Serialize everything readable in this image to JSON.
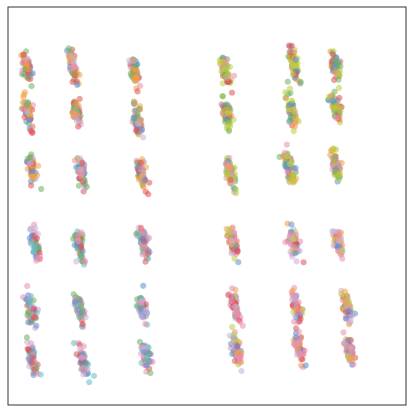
{
  "chart_data": {
    "type": "scatter",
    "title": "",
    "xlabel": "",
    "ylabel": "",
    "grid": false,
    "legend": "none",
    "xlim": [
      0,
      1
    ],
    "ylim": [
      0,
      1
    ],
    "colors": [
      "#f0a040",
      "#e05050",
      "#5b8fd0",
      "#6cb060",
      "#e890b0",
      "#c8b0d8",
      "#b8d040",
      "#60c0c0"
    ],
    "cluster_palettes": {
      "orange-mix": [
        0,
        0,
        1,
        4,
        2,
        5,
        3
      ],
      "green-mix": [
        6,
        6,
        3,
        1,
        2,
        0,
        4
      ],
      "teal-pink-mix": [
        7,
        4,
        4,
        1,
        2,
        5,
        3
      ],
      "pink-mix": [
        4,
        4,
        5,
        1,
        6,
        0,
        2
      ]
    },
    "clusters": [
      {
        "x": 0.048,
        "y": 0.85,
        "palette": "orange-mix"
      },
      {
        "x": 0.163,
        "y": 0.852,
        "palette": "orange-mix"
      },
      {
        "x": 0.318,
        "y": 0.84,
        "palette": "orange-mix"
      },
      {
        "x": 0.545,
        "y": 0.84,
        "palette": "green-mix"
      },
      {
        "x": 0.718,
        "y": 0.858,
        "palette": "green-mix"
      },
      {
        "x": 0.822,
        "y": 0.857,
        "palette": "green-mix"
      },
      {
        "x": 0.05,
        "y": 0.735,
        "palette": "orange-mix"
      },
      {
        "x": 0.172,
        "y": 0.735,
        "palette": "orange-mix"
      },
      {
        "x": 0.325,
        "y": 0.722,
        "palette": "orange-mix"
      },
      {
        "x": 0.55,
        "y": 0.728,
        "palette": "green-mix"
      },
      {
        "x": 0.712,
        "y": 0.742,
        "palette": "green-mix"
      },
      {
        "x": 0.825,
        "y": 0.745,
        "palette": "green-mix"
      },
      {
        "x": 0.06,
        "y": 0.59,
        "palette": "orange-mix"
      },
      {
        "x": 0.183,
        "y": 0.587,
        "palette": "orange-mix"
      },
      {
        "x": 0.335,
        "y": 0.585,
        "palette": "orange-mix"
      },
      {
        "x": 0.558,
        "y": 0.588,
        "palette": "green-mix"
      },
      {
        "x": 0.708,
        "y": 0.598,
        "palette": "green-mix"
      },
      {
        "x": 0.825,
        "y": 0.6,
        "palette": "green-mix"
      },
      {
        "x": 0.068,
        "y": 0.405,
        "palette": "teal-pink-mix"
      },
      {
        "x": 0.18,
        "y": 0.4,
        "palette": "teal-pink-mix"
      },
      {
        "x": 0.34,
        "y": 0.41,
        "palette": "teal-pink-mix"
      },
      {
        "x": 0.565,
        "y": 0.408,
        "palette": "pink-mix"
      },
      {
        "x": 0.717,
        "y": 0.412,
        "palette": "pink-mix"
      },
      {
        "x": 0.83,
        "y": 0.408,
        "palette": "pink-mix"
      },
      {
        "x": 0.058,
        "y": 0.24,
        "palette": "teal-pink-mix"
      },
      {
        "x": 0.18,
        "y": 0.238,
        "palette": "teal-pink-mix"
      },
      {
        "x": 0.338,
        "y": 0.245,
        "palette": "teal-pink-mix"
      },
      {
        "x": 0.57,
        "y": 0.25,
        "palette": "pink-mix"
      },
      {
        "x": 0.725,
        "y": 0.245,
        "palette": "pink-mix"
      },
      {
        "x": 0.852,
        "y": 0.248,
        "palette": "pink-mix"
      },
      {
        "x": 0.062,
        "y": 0.115,
        "palette": "teal-pink-mix"
      },
      {
        "x": 0.19,
        "y": 0.112,
        "palette": "teal-pink-mix"
      },
      {
        "x": 0.345,
        "y": 0.128,
        "palette": "teal-pink-mix"
      },
      {
        "x": 0.575,
        "y": 0.14,
        "palette": "pink-mix"
      },
      {
        "x": 0.732,
        "y": 0.14,
        "palette": "pink-mix"
      },
      {
        "x": 0.858,
        "y": 0.138,
        "palette": "pink-mix"
      }
    ]
  }
}
